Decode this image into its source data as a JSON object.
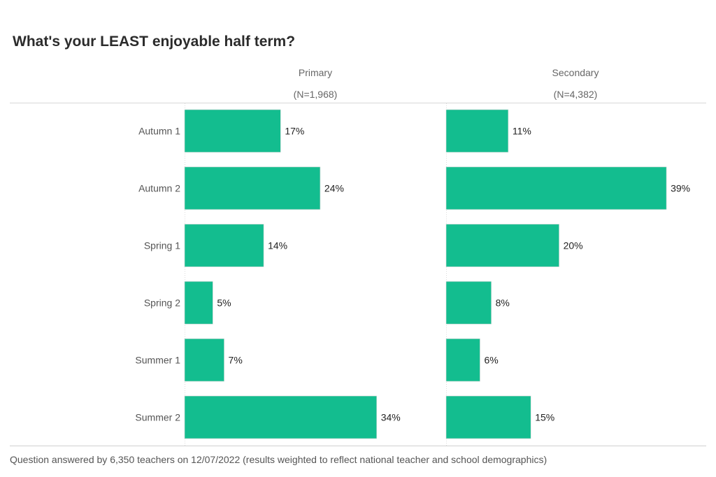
{
  "chart_data": {
    "type": "bar",
    "orientation": "horizontal",
    "title": "What's your LEAST enjoyable half term?",
    "categories": [
      "Autumn 1",
      "Autumn 2",
      "Spring 1",
      "Spring 2",
      "Summer 1",
      "Summer 2"
    ],
    "panels": [
      {
        "name": "Primary",
        "n_label": "(N=1,968)",
        "values": [
          17,
          24,
          14,
          5,
          7,
          34
        ],
        "labels": [
          "17%",
          "24%",
          "14%",
          "5%",
          "7%",
          "34%"
        ]
      },
      {
        "name": "Secondary",
        "n_label": "(N=4,382)",
        "values": [
          11,
          39,
          20,
          8,
          6,
          15
        ],
        "labels": [
          "11%",
          "39%",
          "20%",
          "8%",
          "6%",
          "15%"
        ]
      }
    ],
    "unit": "%",
    "bar_color": "#13bd8f",
    "grid": false,
    "footnote": "Question answered by 6,350 teachers on 12/07/2022 (results weighted to reflect national teacher and school demographics)"
  }
}
